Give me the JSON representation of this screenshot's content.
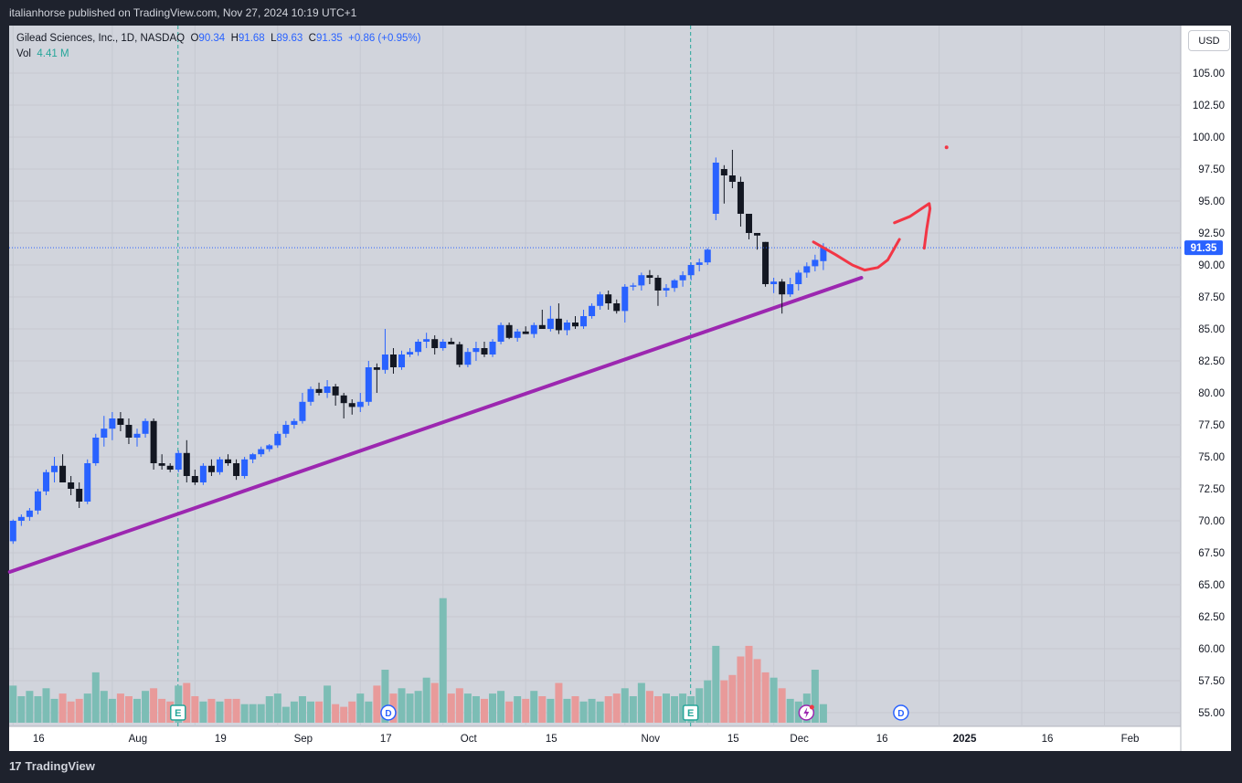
{
  "header": {
    "published": "italianhorse published on TradingView.com, Nov 27, 2024 10:19 UTC+1"
  },
  "legend": {
    "symbol": "Gilead Sciences, Inc., 1D, NASDAQ",
    "o_label": "O",
    "o_value": "90.34",
    "h_label": "H",
    "h_value": "91.68",
    "l_label": "L",
    "l_value": "89.63",
    "c_label": "C",
    "c_value": "91.35",
    "change": "+0.86 (+0.95%)",
    "vol_label": "Vol",
    "vol_value": "4.41 M"
  },
  "currency": "USD",
  "footer": {
    "brand": "TradingView",
    "logo_icon": "tradingview-logo-icon"
  },
  "colors": {
    "up": "#2962ff",
    "down": "#131722",
    "vol_up": "#7cbdb5",
    "vol_down": "#e89a9a",
    "trendline": "#9c27b0",
    "drawing": "#f23645",
    "plot_bg": "#d1d4dc",
    "grid": "#c6c9d1"
  },
  "chart_data": {
    "type": "candlestick",
    "symbol": "GILD",
    "timeframe": "1D",
    "y_axis": {
      "ticks": [
        "105.00",
        "102.50",
        "100.00",
        "97.50",
        "95.00",
        "92.50",
        "90.00",
        "87.50",
        "85.00",
        "82.50",
        "80.00",
        "77.50",
        "75.00",
        "72.50",
        "70.00",
        "67.50",
        "65.00",
        "62.50",
        "60.00",
        "57.50",
        "55.00"
      ],
      "range": [
        54.0,
        108.0
      ]
    },
    "x_axis": {
      "ticks": [
        {
          "label": "16",
          "bar": 0
        },
        {
          "label": "Aug",
          "bar": 12
        },
        {
          "label": "19",
          "bar": 22
        },
        {
          "label": "Sep",
          "bar": 32
        },
        {
          "label": "17",
          "bar": 42
        },
        {
          "label": "Oct",
          "bar": 52
        },
        {
          "label": "15",
          "bar": 62
        },
        {
          "label": "Nov",
          "bar": 74
        },
        {
          "label": "15",
          "bar": 84
        },
        {
          "label": "Dec",
          "bar": 92
        },
        {
          "label": "16",
          "bar": 102
        },
        {
          "label": "2025",
          "bar": 112
        },
        {
          "label": "16",
          "bar": 122
        },
        {
          "label": "Feb",
          "bar": 132
        }
      ]
    },
    "last_price": "91.35",
    "candles": [
      [
        68.4,
        70.1,
        68.2,
        70.0,
        1.4
      ],
      [
        70.0,
        70.5,
        69.6,
        70.3,
        1.0
      ],
      [
        70.3,
        71.0,
        70.0,
        70.8,
        1.2
      ],
      [
        70.8,
        72.5,
        70.5,
        72.3,
        1.0
      ],
      [
        72.3,
        74.0,
        72.0,
        73.8,
        1.3
      ],
      [
        73.8,
        75.0,
        73.0,
        74.3,
        0.9
      ],
      [
        74.3,
        75.2,
        73.0,
        73.0,
        1.1
      ],
      [
        73.0,
        73.5,
        72.0,
        72.5,
        0.8
      ],
      [
        72.5,
        73.0,
        71.0,
        71.5,
        0.9
      ],
      [
        71.5,
        74.8,
        71.3,
        74.5,
        1.1
      ],
      [
        74.5,
        76.8,
        74.3,
        76.5,
        1.9
      ],
      [
        76.5,
        78.2,
        75.8,
        77.2,
        1.2
      ],
      [
        77.2,
        78.5,
        76.3,
        78.0,
        0.9
      ],
      [
        78.0,
        78.5,
        77.0,
        77.5,
        1.1
      ],
      [
        77.5,
        78.0,
        76.0,
        76.5,
        1.0
      ],
      [
        76.5,
        77.2,
        75.8,
        76.8,
        0.9
      ],
      [
        76.8,
        78.0,
        76.5,
        77.8,
        1.2
      ],
      [
        77.8,
        78.0,
        74.0,
        74.5,
        1.3
      ],
      [
        74.5,
        75.2,
        74.0,
        74.3,
        0.9
      ],
      [
        74.3,
        74.5,
        73.8,
        74.0,
        0.8
      ],
      [
        74.0,
        75.5,
        73.8,
        75.3,
        1.4
      ],
      [
        75.3,
        76.3,
        73.0,
        73.5,
        1.5
      ],
      [
        73.5,
        74.0,
        72.8,
        73.0,
        1.0
      ],
      [
        73.0,
        74.5,
        72.8,
        74.3,
        0.8
      ],
      [
        74.3,
        74.8,
        73.5,
        73.8,
        0.9
      ],
      [
        73.8,
        75.0,
        73.6,
        74.8,
        0.8
      ],
      [
        74.8,
        75.2,
        74.3,
        74.5,
        0.9
      ],
      [
        74.5,
        74.8,
        73.2,
        73.5,
        0.9
      ],
      [
        73.5,
        75.0,
        73.3,
        74.8,
        0.7
      ],
      [
        74.8,
        75.3,
        74.5,
        75.2,
        0.7
      ],
      [
        75.2,
        75.8,
        75.0,
        75.6,
        0.7
      ],
      [
        75.6,
        76.0,
        75.4,
        75.9,
        1.0
      ],
      [
        75.9,
        77.0,
        75.7,
        76.8,
        1.1
      ],
      [
        76.8,
        77.8,
        76.5,
        77.5,
        0.6
      ],
      [
        77.5,
        78.0,
        77.2,
        77.8,
        0.8
      ],
      [
        77.8,
        80.0,
        77.6,
        79.3,
        1.0
      ],
      [
        79.3,
        80.5,
        79.0,
        80.3,
        0.8
      ],
      [
        80.3,
        80.8,
        79.8,
        80.0,
        0.8
      ],
      [
        80.0,
        81.0,
        79.6,
        80.5,
        1.4
      ],
      [
        80.5,
        80.7,
        79.0,
        79.8,
        0.7
      ],
      [
        79.8,
        80.0,
        78.0,
        79.2,
        0.6
      ],
      [
        79.2,
        79.5,
        78.3,
        78.9,
        0.8
      ],
      [
        78.9,
        80.0,
        78.5,
        79.3,
        1.1
      ],
      [
        79.3,
        82.5,
        79.0,
        82.0,
        0.8
      ],
      [
        82.0,
        82.3,
        80.0,
        81.8,
        1.4
      ],
      [
        81.8,
        85.0,
        81.5,
        83.0,
        2.0
      ],
      [
        83.0,
        83.5,
        81.5,
        82.0,
        1.1
      ],
      [
        82.0,
        83.3,
        81.8,
        83.0,
        1.3
      ],
      [
        83.0,
        83.5,
        82.8,
        83.2,
        1.1
      ],
      [
        83.2,
        84.2,
        82.9,
        84.0,
        1.2
      ],
      [
        84.0,
        84.7,
        83.5,
        84.2,
        1.7
      ],
      [
        84.2,
        84.5,
        83.0,
        83.5,
        1.5
      ],
      [
        83.5,
        84.2,
        83.3,
        84.0,
        4.7
      ],
      [
        84.0,
        84.3,
        83.8,
        83.8,
        1.1
      ],
      [
        83.8,
        84.0,
        82.0,
        82.2,
        1.3
      ],
      [
        82.2,
        83.5,
        82.0,
        83.2,
        1.1
      ],
      [
        83.2,
        84.0,
        82.5,
        83.5,
        1.0
      ],
      [
        83.5,
        84.0,
        82.8,
        83.0,
        0.9
      ],
      [
        83.0,
        84.2,
        82.8,
        84.0,
        1.1
      ],
      [
        84.0,
        85.5,
        83.8,
        85.3,
        1.2
      ],
      [
        85.3,
        85.5,
        84.2,
        84.3,
        0.8
      ],
      [
        84.3,
        85.0,
        84.0,
        84.8,
        1.0
      ],
      [
        84.8,
        85.2,
        84.6,
        84.6,
        0.9
      ],
      [
        84.6,
        85.5,
        84.3,
        85.3,
        1.2
      ],
      [
        85.3,
        86.5,
        85.0,
        85.0,
        1.0
      ],
      [
        85.0,
        86.8,
        84.8,
        85.8,
        0.9
      ],
      [
        85.8,
        87.0,
        84.6,
        84.9,
        1.5
      ],
      [
        84.9,
        85.7,
        84.5,
        85.5,
        0.9
      ],
      [
        85.5,
        86.0,
        85.0,
        85.2,
        1.0
      ],
      [
        85.2,
        86.5,
        85.0,
        86.0,
        0.8
      ],
      [
        86.0,
        87.0,
        85.8,
        86.8,
        0.9
      ],
      [
        86.8,
        87.9,
        86.5,
        87.7,
        0.8
      ],
      [
        87.7,
        88.0,
        86.5,
        87.0,
        1.0
      ],
      [
        87.0,
        87.3,
        86.2,
        86.4,
        1.1
      ],
      [
        86.4,
        88.5,
        85.5,
        88.3,
        1.3
      ],
      [
        88.3,
        88.6,
        88.0,
        88.4,
        1.0
      ],
      [
        88.4,
        89.4,
        88.0,
        89.2,
        1.5
      ],
      [
        89.2,
        89.6,
        88.5,
        89.0,
        1.2
      ],
      [
        89.0,
        89.2,
        86.8,
        88.0,
        1.0
      ],
      [
        88.0,
        88.5,
        87.5,
        88.2,
        1.1
      ],
      [
        88.2,
        88.9,
        87.9,
        88.8,
        1.0
      ],
      [
        88.8,
        89.5,
        88.3,
        89.2,
        1.1
      ],
      [
        89.2,
        90.2,
        88.8,
        90.0,
        1.0
      ],
      [
        90.0,
        90.5,
        89.5,
        90.2,
        1.3
      ],
      [
        90.2,
        91.3,
        90.0,
        91.2,
        1.6
      ],
      [
        94.0,
        98.4,
        93.5,
        98.0,
        2.9
      ],
      [
        97.5,
        97.8,
        94.8,
        97.0,
        1.6
      ],
      [
        97.0,
        99.0,
        96.0,
        96.5,
        1.8
      ],
      [
        96.5,
        96.9,
        93.0,
        94.0,
        2.5
      ],
      [
        94.0,
        94.0,
        92.0,
        92.5,
        2.9
      ],
      [
        92.5,
        92.5,
        91.2,
        92.3,
        2.4
      ],
      [
        91.8,
        91.8,
        88.3,
        88.5,
        1.9
      ],
      [
        88.5,
        89.0,
        87.8,
        88.7,
        1.7
      ],
      [
        88.7,
        88.9,
        86.2,
        87.7,
        1.3
      ],
      [
        87.7,
        89.0,
        87.5,
        88.5,
        0.9
      ],
      [
        88.5,
        89.6,
        88.0,
        89.4,
        0.8
      ],
      [
        89.4,
        90.2,
        89.0,
        89.9,
        1.1
      ],
      [
        89.9,
        90.8,
        89.5,
        90.4,
        2.0
      ],
      [
        90.3,
        91.7,
        89.6,
        91.4,
        0.7
      ]
    ],
    "trendline": {
      "start": {
        "bar": -0.4,
        "price": 66.0
      },
      "end": {
        "bar": 102.6,
        "price": 89.0
      }
    },
    "event_lines": [
      {
        "bar": 20.5,
        "label": "E"
      },
      {
        "bar": 82.5,
        "label": "E"
      }
    ],
    "dividend_markers": [
      {
        "bar": 45.5,
        "label": "D"
      },
      {
        "bar": 107.5,
        "label": "D"
      }
    ],
    "earnings_markers": [
      {
        "bar": 20.5,
        "label": "E"
      },
      {
        "bar": 82.5,
        "label": "E"
      }
    ],
    "split_marker": {
      "bar": 96.5,
      "icon": "lightning-icon"
    },
    "projection": [
      [
        96.8,
        91.8
      ],
      [
        99.5,
        90.8
      ],
      [
        101.5,
        90.0
      ],
      [
        103.0,
        89.6
      ],
      [
        104.6,
        89.8
      ],
      [
        105.8,
        90.4
      ],
      [
        107.2,
        92.0
      ]
    ],
    "arrow": {
      "shaft": [
        [
          106.6,
          93.3
        ],
        [
          108.5,
          93.8
        ],
        [
          110.8,
          94.8
        ],
        [
          110.9,
          94.4
        ],
        [
          110.5,
          92.8
        ],
        [
          110.2,
          91.3
        ]
      ]
    },
    "dot": {
      "bar": 112.9,
      "price": 99.2
    }
  }
}
